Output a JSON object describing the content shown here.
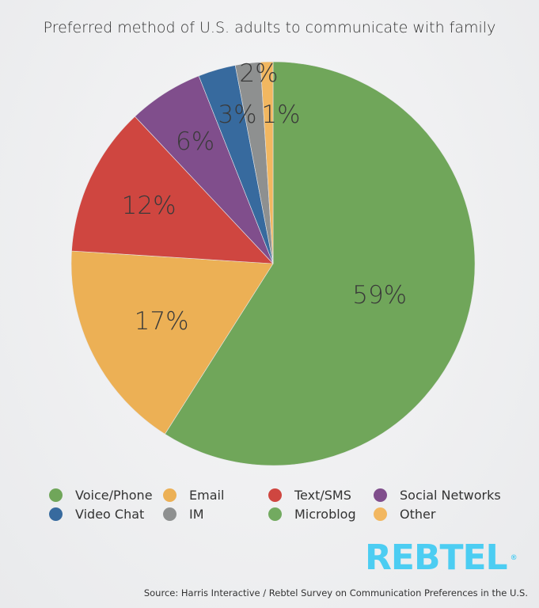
{
  "chart_data": {
    "type": "pie",
    "title": "Preferred method of U.S. adults to communicate with family",
    "slices": [
      {
        "name": "Voice/Phone",
        "value": 59,
        "label": "59%",
        "color": "#70a65a"
      },
      {
        "name": "Email",
        "value": 17,
        "label": "17%",
        "color": "#ecb055"
      },
      {
        "name": "Text/SMS",
        "value": 12,
        "label": "12%",
        "color": "#cf4640"
      },
      {
        "name": "Social Networks",
        "value": 6,
        "label": "6%",
        "color": "#804e8c"
      },
      {
        "name": "Video Chat",
        "value": 3,
        "label": "3%",
        "color": "#376a9e"
      },
      {
        "name": "IM",
        "value": 2,
        "label": "2%",
        "color": "#8e9090"
      },
      {
        "name": "Microblog",
        "value": 0,
        "label": "",
        "color": "#72aa60"
      },
      {
        "name": "Other",
        "value": 1,
        "label": "1%",
        "color": "#f2b760"
      }
    ],
    "start": "top",
    "direction": "clockwise",
    "legend_position": "bottom"
  },
  "logo": {
    "text": "REBTEL",
    "mark": "®",
    "color": "#4ccdf2"
  },
  "source": "Source: Harris Interactive / Rebtel Survey on Communication Preferences in the U.S."
}
